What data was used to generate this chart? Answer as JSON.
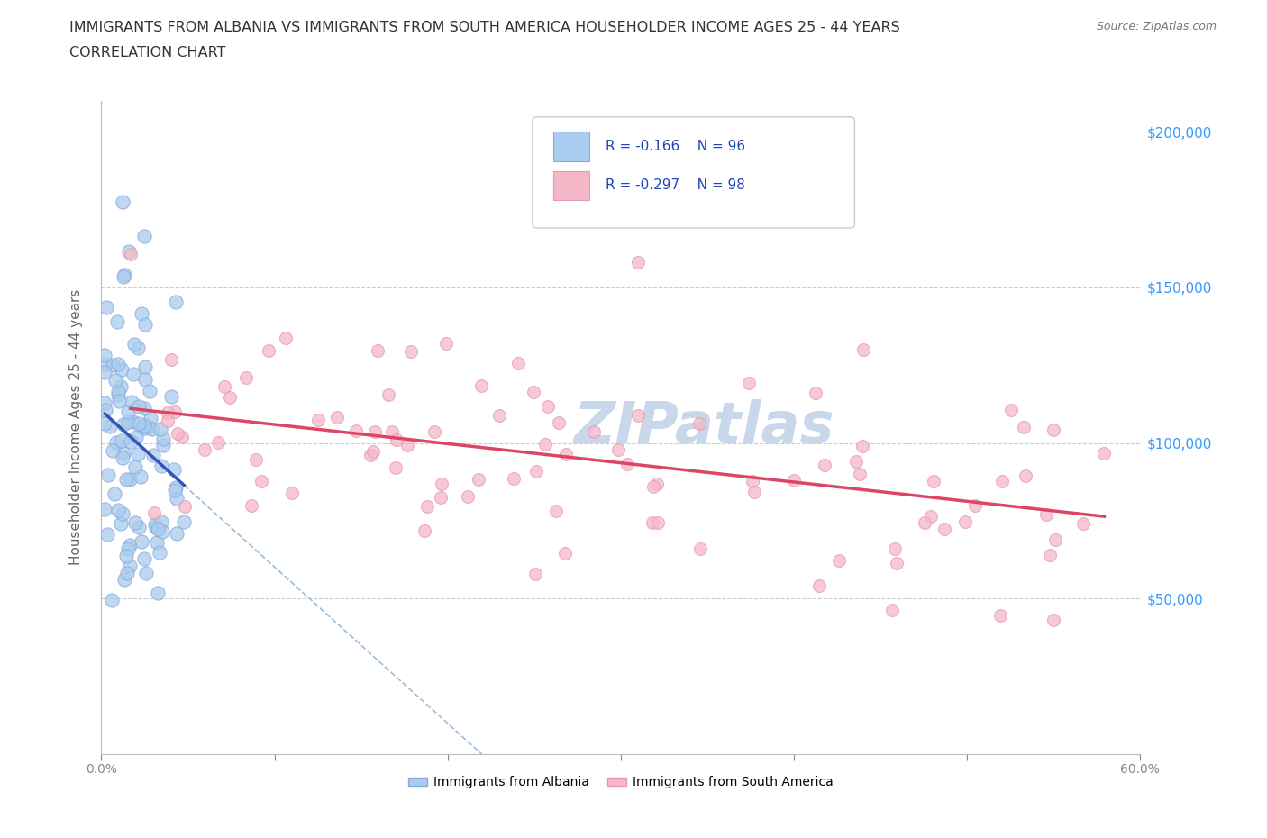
{
  "title_line1": "IMMIGRANTS FROM ALBANIA VS IMMIGRANTS FROM SOUTH AMERICA HOUSEHOLDER INCOME AGES 25 - 44 YEARS",
  "title_line2": "CORRELATION CHART",
  "source_text": "Source: ZipAtlas.com",
  "ylabel": "Householder Income Ages 25 - 44 years",
  "xlim": [
    0.0,
    0.6
  ],
  "ylim": [
    0,
    210000
  ],
  "xticks": [
    0.0,
    0.1,
    0.2,
    0.3,
    0.4,
    0.5,
    0.6
  ],
  "xticklabels": [
    "0.0%",
    "",
    "",
    "",
    "",
    "",
    "60.0%"
  ],
  "yticks": [
    0,
    50000,
    100000,
    150000,
    200000
  ],
  "yticklabels_right": [
    "",
    "$50,000",
    "$100,000",
    "$150,000",
    "$200,000"
  ],
  "albania_color": "#aaccee",
  "albania_edge": "#88aadd",
  "south_america_color": "#f5b8c8",
  "south_america_edge": "#e898b0",
  "albania_line_color": "#3355bb",
  "south_america_line_color": "#dd4466",
  "dash_line_color": "#99bbdd",
  "albania_R": -0.166,
  "albania_N": 96,
  "south_america_R": -0.297,
  "south_america_N": 98,
  "legend_R_color": "#2244bb",
  "watermark_color": "#c8d8ea",
  "grid_color": "#cccccc",
  "axis_color": "#bbbbbb",
  "tick_color": "#888888"
}
